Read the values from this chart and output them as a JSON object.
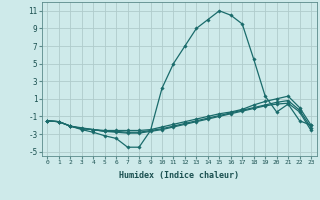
{
  "xlabel": "Humidex (Indice chaleur)",
  "ylabel": "",
  "bg_color": "#ceeaea",
  "line_color": "#1a6b6b",
  "grid_color": "#b0cccc",
  "xlim": [
    -0.5,
    23.5
  ],
  "ylim": [
    -5.5,
    12.0
  ],
  "yticks": [
    -5,
    -3,
    -1,
    1,
    3,
    5,
    7,
    9,
    11
  ],
  "xticks": [
    0,
    1,
    2,
    3,
    4,
    5,
    6,
    7,
    8,
    9,
    10,
    11,
    12,
    13,
    14,
    15,
    16,
    17,
    18,
    19,
    20,
    21,
    22,
    23
  ],
  "series": [
    {
      "x": [
        0,
        1,
        2,
        3,
        4,
        5,
        6,
        7,
        8,
        9,
        10,
        11,
        12,
        13,
        14,
        15,
        16,
        17,
        18,
        19,
        20,
        21,
        22,
        23
      ],
      "y": [
        -1.5,
        -1.6,
        -2.1,
        -2.5,
        -2.8,
        -3.2,
        -3.5,
        -4.5,
        -4.5,
        -2.6,
        2.2,
        5.0,
        7.0,
        9.0,
        10.0,
        11.0,
        10.5,
        9.5,
        5.5,
        1.3,
        -0.5,
        0.4,
        -1.5,
        -2.0
      ]
    },
    {
      "x": [
        0,
        1,
        2,
        3,
        4,
        5,
        6,
        7,
        8,
        9,
        10,
        11,
        12,
        13,
        14,
        15,
        16,
        17,
        18,
        19,
        20,
        21,
        22,
        23
      ],
      "y": [
        -1.5,
        -1.6,
        -2.1,
        -2.3,
        -2.5,
        -2.6,
        -2.6,
        -2.6,
        -2.6,
        -2.5,
        -2.2,
        -1.9,
        -1.6,
        -1.3,
        -1.0,
        -0.7,
        -0.5,
        -0.2,
        0.3,
        0.7,
        1.0,
        1.3,
        0.0,
        -2.0
      ]
    },
    {
      "x": [
        0,
        1,
        2,
        3,
        4,
        5,
        6,
        7,
        8,
        9,
        10,
        11,
        12,
        13,
        14,
        15,
        16,
        17,
        18,
        19,
        20,
        21,
        22,
        23
      ],
      "y": [
        -1.5,
        -1.6,
        -2.1,
        -2.4,
        -2.5,
        -2.7,
        -2.7,
        -2.8,
        -2.8,
        -2.6,
        -2.4,
        -2.1,
        -1.8,
        -1.5,
        -1.2,
        -0.9,
        -0.6,
        -0.3,
        0.0,
        0.3,
        0.6,
        0.8,
        -0.3,
        -2.3
      ]
    },
    {
      "x": [
        0,
        1,
        2,
        3,
        4,
        5,
        6,
        7,
        8,
        9,
        10,
        11,
        12,
        13,
        14,
        15,
        16,
        17,
        18,
        19,
        20,
        21,
        22,
        23
      ],
      "y": [
        -1.5,
        -1.6,
        -2.1,
        -2.4,
        -2.5,
        -2.7,
        -2.8,
        -2.9,
        -2.9,
        -2.7,
        -2.5,
        -2.2,
        -1.9,
        -1.6,
        -1.3,
        -1.0,
        -0.7,
        -0.4,
        -0.1,
        0.2,
        0.4,
        0.5,
        -0.5,
        -2.6
      ]
    }
  ]
}
